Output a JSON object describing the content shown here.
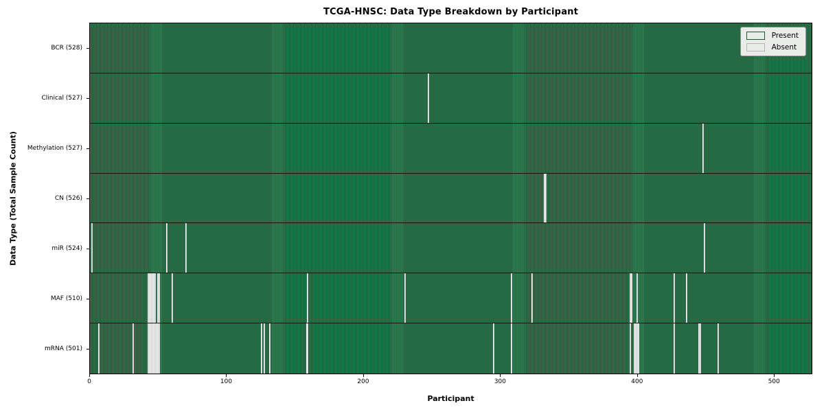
{
  "chart_data": {
    "type": "heatmap",
    "title": "TCGA-HNSC: Data Type Breakdown by Participant",
    "xlabel": "Participant",
    "ylabel": "Data Type (Total Sample Count)",
    "n_participants": 528,
    "x_range": [
      0,
      528
    ],
    "x_ticks": [
      0,
      100,
      200,
      300,
      400,
      500
    ],
    "grid": false,
    "legend_position": "upper right",
    "legend": [
      {
        "label": "Present",
        "color": "#2e8055"
      },
      {
        "label": "Absent",
        "color": "#ffffff"
      }
    ],
    "colors": {
      "present_fill": "#2e7f52",
      "present_edge": "#1c5434",
      "absent_fill": "#ffffff",
      "absent_edge": "#c4c4c4",
      "row_divider": "#141414"
    },
    "rows": [
      {
        "name": "BCR",
        "total": 528,
        "label": "BCR (528)",
        "absent_participants": []
      },
      {
        "name": "Clinical",
        "total": 527,
        "label": "Clinical (527)",
        "absent_participants": [
          247
        ]
      },
      {
        "name": "Methylation",
        "total": 527,
        "label": "Methylation (527)",
        "absent_participants": [
          448
        ]
      },
      {
        "name": "CN",
        "total": 526,
        "label": "CN (526)",
        "absent_participants": [
          332,
          333
        ]
      },
      {
        "name": "miR",
        "total": 524,
        "label": "miR (524)",
        "absent_participants": [
          1,
          56,
          70,
          449
        ]
      },
      {
        "name": "MAF",
        "total": 510,
        "label": "MAF (510)",
        "absent_participants": [
          42,
          43,
          44,
          45,
          46,
          47,
          49,
          50,
          60,
          159,
          230,
          308,
          323,
          395,
          396,
          400,
          427,
          436
        ]
      },
      {
        "name": "mRNA",
        "total": 501,
        "label": "mRNA (501)",
        "absent_participants": [
          6,
          31,
          42,
          43,
          44,
          45,
          46,
          47,
          48,
          49,
          50,
          125,
          127,
          131,
          158,
          159,
          295,
          308,
          395,
          398,
          399,
          400,
          401,
          427,
          445,
          446,
          459
        ]
      }
    ]
  }
}
